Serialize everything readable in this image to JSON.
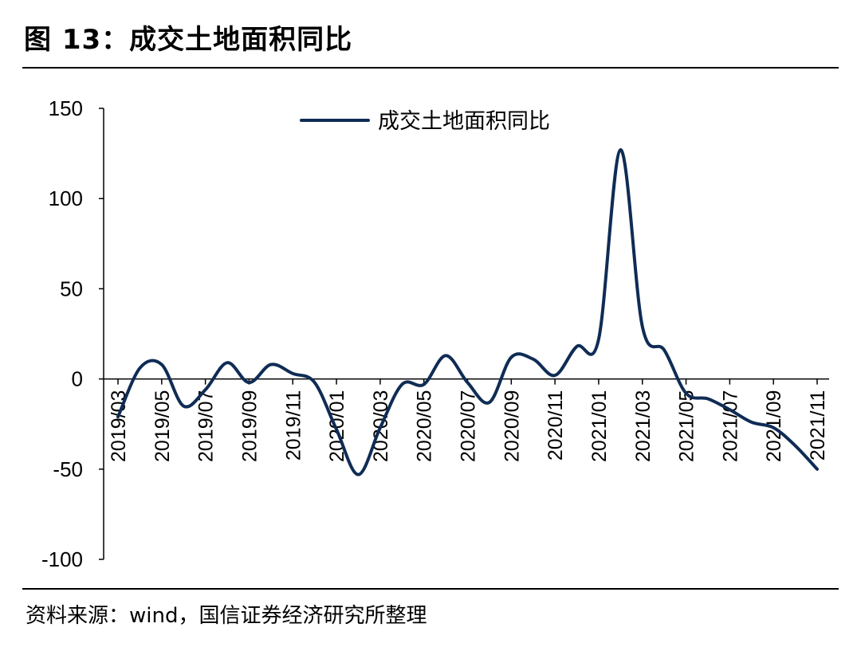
{
  "figure": {
    "title": "图 13：成交土地面积同比",
    "source": "资料来源：wind，国信证券经济研究所整理"
  },
  "colors": {
    "series_line": "#0f2c55",
    "axis": "#000000",
    "rule": "#000000"
  },
  "chart_data": {
    "type": "line",
    "title": "",
    "xlabel": "",
    "ylabel": "",
    "ylim": [
      -100,
      150
    ],
    "yticks": [
      150,
      100,
      50,
      0,
      -50,
      -100
    ],
    "grid": false,
    "legend_position": "top",
    "x": [
      "2019/03",
      "2019/04",
      "2019/05",
      "2019/06",
      "2019/07",
      "2019/08",
      "2019/09",
      "2019/10",
      "2019/11",
      "2019/12",
      "2020/01",
      "2020/02",
      "2020/03",
      "2020/04",
      "2020/05",
      "2020/06",
      "2020/07",
      "2020/08",
      "2020/09",
      "2020/10",
      "2020/11",
      "2020/12",
      "2021/01",
      "2021/02",
      "2021/03",
      "2021/04",
      "2021/05",
      "2021/06",
      "2021/07",
      "2021/08",
      "2021/09",
      "2021/10",
      "2021/11"
    ],
    "xtick_labels": [
      "2019/03",
      "2019/05",
      "2019/07",
      "2019/09",
      "2019/11",
      "2020/01",
      "2020/03",
      "2020/05",
      "2020/07",
      "2020/09",
      "2020/11",
      "2021/01",
      "2021/03",
      "2021/05",
      "2021/07",
      "2021/09",
      "2021/11"
    ],
    "series": [
      {
        "name": "成交土地面积同比",
        "values": [
          -21,
          6,
          8,
          -15,
          -6,
          9,
          -2,
          8,
          3,
          -2,
          -28,
          -53,
          -27,
          -3,
          -3,
          13,
          -2,
          -13,
          12,
          11,
          2,
          18,
          22,
          127,
          29,
          16,
          -8,
          -11,
          -17,
          -24,
          -27,
          -37,
          -50
        ]
      }
    ]
  }
}
